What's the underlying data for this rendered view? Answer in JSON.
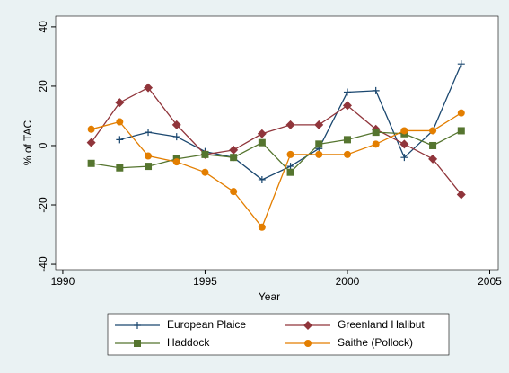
{
  "chart_data": {
    "type": "line",
    "xlabel": "Year",
    "ylabel": "% of TAC",
    "x": [
      1991,
      1992,
      1993,
      1994,
      1995,
      1996,
      1997,
      1998,
      1999,
      2000,
      2001,
      2002,
      2003,
      2004
    ],
    "xlim": [
      1989.75,
      2005.3
    ],
    "xticks": [
      1990,
      1995,
      2000,
      2005
    ],
    "ylim": [
      -41.8,
      43.6
    ],
    "yticks": [
      -40,
      -20,
      0,
      20,
      40
    ],
    "legend": "bottom",
    "series": [
      {
        "name": "European Plaice",
        "color": "#1a476f",
        "marker": "plus",
        "values": [
          null,
          2,
          4.5,
          3,
          -2,
          -4,
          -11.5,
          -7,
          -1,
          18,
          18.5,
          -4,
          5,
          27.5
        ]
      },
      {
        "name": "Greenland Halibut",
        "color": "#90353b",
        "marker": "diamond",
        "values": [
          1,
          14.5,
          19.5,
          7,
          -3,
          -1.5,
          4,
          7,
          7,
          13.5,
          5.5,
          0.5,
          -4.5,
          -16.5
        ]
      },
      {
        "name": "Haddock",
        "color": "#55752f",
        "marker": "square",
        "values": [
          -6,
          -7.5,
          -7,
          -4.5,
          -3,
          -4,
          1,
          -9,
          0.5,
          2,
          4.5,
          4,
          0,
          5
        ]
      },
      {
        "name": "Saithe (Pollock)",
        "color": "#e37e00",
        "marker": "circle",
        "values": [
          5.5,
          8,
          -3.5,
          -5.5,
          -9,
          -15.5,
          -27.5,
          -3,
          -3,
          -3,
          0.5,
          5,
          5,
          11
        ]
      }
    ]
  }
}
